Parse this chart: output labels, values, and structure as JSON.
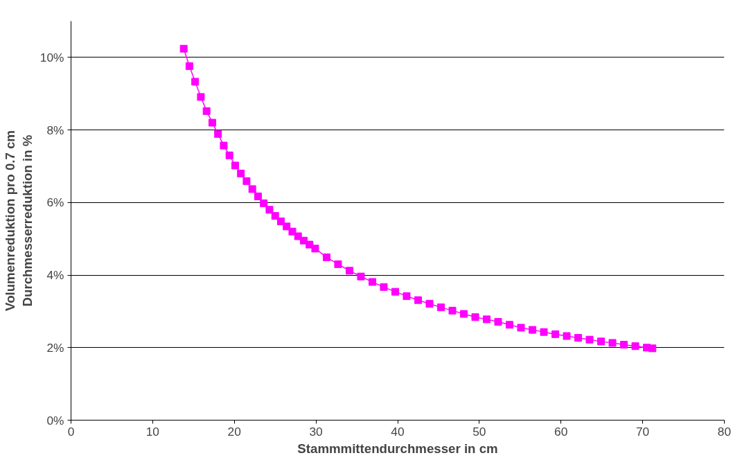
{
  "chart_data": {
    "type": "line",
    "xlabel": "Stammmittendurchmesser in cm",
    "ylabel": "Volumenreduktion pro 0.7 cm\nDurchmesserreduktion in %",
    "x": [
      13.8,
      14.5,
      15.2,
      15.9,
      16.6,
      17.3,
      18.0,
      18.7,
      19.4,
      20.1,
      20.8,
      21.5,
      22.2,
      22.9,
      23.6,
      24.3,
      25.0,
      25.7,
      26.4,
      27.1,
      27.8,
      28.5,
      29.2,
      29.9,
      31.3,
      32.7,
      34.1,
      35.5,
      36.9,
      38.3,
      39.7,
      41.1,
      42.5,
      43.9,
      45.3,
      46.7,
      48.1,
      49.5,
      50.9,
      52.3,
      53.7,
      55.1,
      56.5,
      57.9,
      59.3,
      60.7,
      62.1,
      63.5,
      64.9,
      66.3,
      67.7,
      69.1,
      70.5,
      71.2
    ],
    "series": [
      {
        "color": "#ff00ff",
        "values": [
          10.24,
          9.76,
          9.33,
          8.91,
          8.52,
          8.2,
          7.89,
          7.57,
          7.3,
          7.02,
          6.8,
          6.59,
          6.37,
          6.17,
          5.98,
          5.8,
          5.63,
          5.48,
          5.34,
          5.2,
          5.07,
          4.95,
          4.84,
          4.73,
          4.49,
          4.3,
          4.12,
          3.96,
          3.81,
          3.67,
          3.54,
          3.42,
          3.31,
          3.21,
          3.11,
          3.02,
          2.93,
          2.84,
          2.78,
          2.71,
          2.63,
          2.55,
          2.49,
          2.43,
          2.37,
          2.32,
          2.27,
          2.22,
          2.17,
          2.13,
          2.08,
          2.04,
          2.0,
          1.98
        ]
      }
    ],
    "xlim": [
      0,
      80
    ],
    "xticks": [
      0,
      10,
      20,
      30,
      40,
      50,
      60,
      70,
      80
    ],
    "ylim": [
      0,
      11
    ],
    "yticks": [
      {
        "value": 0,
        "label": "0%"
      },
      {
        "value": 2,
        "label": "2%"
      },
      {
        "value": 4,
        "label": "4%"
      },
      {
        "value": 6,
        "label": "6%"
      },
      {
        "value": 8,
        "label": "8%"
      },
      {
        "value": 10,
        "label": "10%"
      }
    ],
    "grid": "y",
    "marker": "square",
    "line_style": "solid"
  }
}
